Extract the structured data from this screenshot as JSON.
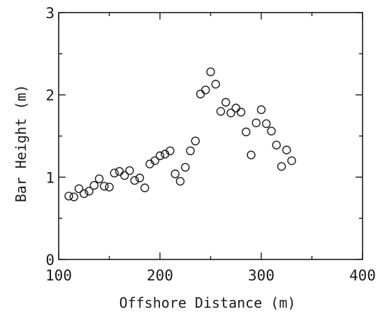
{
  "chart_data": {
    "type": "scatter",
    "title": "",
    "xlabel": "Offshore Distance (m)",
    "ylabel": "Bar Height (m)",
    "xlim": [
      100,
      400
    ],
    "ylim": [
      0,
      3
    ],
    "xticks": [
      100,
      200,
      300,
      400
    ],
    "yticks": [
      0,
      1,
      2,
      3
    ],
    "xtick_labels": [
      "100",
      "200",
      "300",
      "400"
    ],
    "ytick_labels": [
      "0",
      "1",
      "2",
      "3"
    ],
    "grid": false,
    "marker": "open-circle",
    "series": [
      {
        "x": [
          110,
          115,
          120,
          125,
          130,
          135,
          140,
          145,
          150,
          155,
          160,
          165,
          170,
          175,
          180,
          185,
          190,
          195,
          200,
          205,
          210,
          215,
          220,
          225,
          230,
          235,
          240,
          245,
          250,
          255,
          260,
          265,
          270,
          275,
          280,
          285,
          290,
          295,
          300,
          305,
          310,
          315,
          320,
          325,
          330
        ],
        "y": [
          0.77,
          0.76,
          0.86,
          0.8,
          0.83,
          0.9,
          0.98,
          0.89,
          0.88,
          1.05,
          1.07,
          1.02,
          1.08,
          0.96,
          0.99,
          0.87,
          1.16,
          1.2,
          1.26,
          1.28,
          1.32,
          1.04,
          0.95,
          1.12,
          1.32,
          1.44,
          2.01,
          2.06,
          2.28,
          2.13,
          1.8,
          1.91,
          1.78,
          1.84,
          1.79,
          1.55,
          1.27,
          1.66,
          1.82,
          1.65,
          1.56,
          1.39,
          1.13,
          1.33,
          1.2
        ]
      }
    ]
  }
}
